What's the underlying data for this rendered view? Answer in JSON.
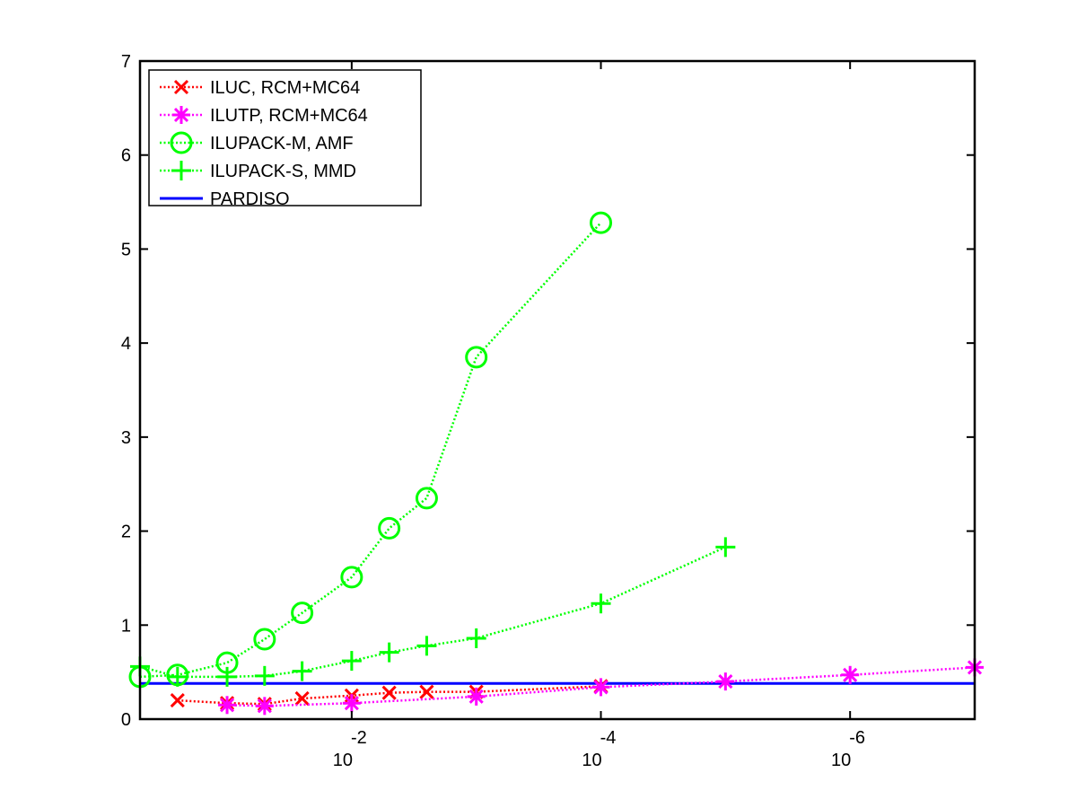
{
  "chart_data": {
    "type": "line",
    "title": "",
    "xlabel": "",
    "ylabel": "",
    "x_scale": "log",
    "x_reversed": true,
    "xlim": [
      0.5,
      1e-07
    ],
    "ylim": [
      0,
      7
    ],
    "grid": false,
    "legend_position": "top-left",
    "x_ticks": [
      {
        "value": 0.01,
        "base": "10",
        "exponent": "-2"
      },
      {
        "value": 0.0001,
        "base": "10",
        "exponent": "-4"
      },
      {
        "value": 1e-06,
        "base": "10",
        "exponent": "-6"
      }
    ],
    "y_ticks": [
      "0",
      "1",
      "2",
      "3",
      "4",
      "5",
      "6",
      "7"
    ],
    "series": [
      {
        "name": "ILUC, RCM+MC64",
        "color": "#ff0000",
        "marker": "x",
        "line": "dotted",
        "x": [
          0.25,
          0.1,
          0.05,
          0.025,
          0.01,
          0.005,
          0.0025,
          0.001,
          0.0001
        ],
        "y": [
          0.2,
          0.17,
          0.16,
          0.22,
          0.25,
          0.28,
          0.29,
          0.29,
          0.35
        ]
      },
      {
        "name": "ILUTP, RCM+MC64",
        "color": "#ff00ff",
        "marker": "asterisk",
        "line": "dotted",
        "x": [
          0.1,
          0.05,
          0.01,
          0.001,
          0.0001,
          1e-05,
          1e-06,
          1e-07
        ],
        "y": [
          0.15,
          0.14,
          0.17,
          0.24,
          0.34,
          0.4,
          0.47,
          0.55
        ]
      },
      {
        "name": "ILUPACK-M, AMF",
        "color": "#00ff00",
        "marker": "circle",
        "line": "dotted",
        "x": [
          0.5,
          0.25,
          0.1,
          0.05,
          0.025,
          0.01,
          0.005,
          0.0025,
          0.001,
          0.0001
        ],
        "y": [
          0.45,
          0.47,
          0.6,
          0.85,
          1.13,
          1.51,
          2.03,
          2.35,
          3.85,
          5.28
        ]
      },
      {
        "name": "ILUPACK-S, MMD",
        "color": "#00ff00",
        "marker": "plus",
        "line": "dotted",
        "x": [
          0.5,
          0.25,
          0.1,
          0.05,
          0.025,
          0.01,
          0.005,
          0.0025,
          0.001,
          0.0001,
          1e-05
        ],
        "y": [
          0.56,
          0.45,
          0.45,
          0.46,
          0.51,
          0.62,
          0.71,
          0.78,
          0.86,
          1.23,
          1.83
        ]
      },
      {
        "name": "PARDISO",
        "color": "#0000ff",
        "marker": "none",
        "line": "solid",
        "x": [
          0.5,
          1e-07
        ],
        "y": [
          0.38,
          0.38
        ]
      }
    ]
  }
}
